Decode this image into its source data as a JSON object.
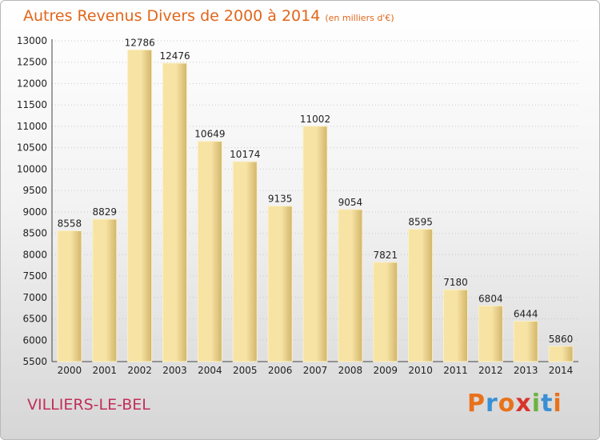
{
  "title": "Autres Revenus Divers de 2000 à 2014",
  "subtitle": "(en milliers d'€)",
  "location": "VILLIERS-LE-BEL",
  "brand": {
    "letters": [
      "P",
      "r",
      "o",
      "x",
      "i",
      "t",
      "i"
    ],
    "colors": [
      "#e8721c",
      "#3b8fd4",
      "#e8721c",
      "#d9342b",
      "#6cb33f",
      "#3b8fd4",
      "#e8721c"
    ]
  },
  "colors": {
    "bar_light": "#f7e3a4",
    "bar_dark": "#d2b56b",
    "bar_edge": "#fbf0c8",
    "title": "#e1661a",
    "city": "#c22e5a",
    "grid": "#c8c8c8"
  },
  "chart_data": {
    "type": "bar",
    "categories": [
      "2000",
      "2001",
      "2002",
      "2003",
      "2004",
      "2005",
      "2006",
      "2007",
      "2008",
      "2009",
      "2010",
      "2011",
      "2012",
      "2013",
      "2014"
    ],
    "values": [
      8558,
      8829,
      12786,
      12476,
      10649,
      10174,
      9135,
      11002,
      9054,
      7821,
      8595,
      7180,
      6804,
      6444,
      5860
    ],
    "xlabel": "",
    "ylabel": "",
    "ylim": [
      5500,
      13000
    ],
    "yticks": [
      5500,
      6000,
      6500,
      7000,
      7500,
      8000,
      8500,
      9000,
      9500,
      10000,
      10500,
      11000,
      11500,
      12000,
      12500,
      13000
    ],
    "grid": true,
    "data_labels": true
  }
}
